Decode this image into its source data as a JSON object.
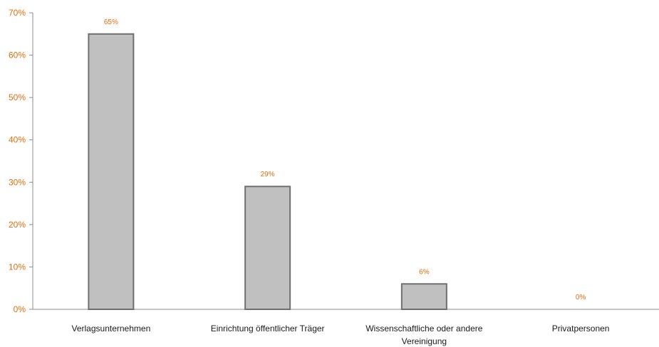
{
  "chart_data": {
    "type": "bar",
    "categories": [
      [
        "Verlagsunternehmen"
      ],
      [
        "Einrichtung öffentlicher Träger"
      ],
      [
        "Wissenschaftliche oder andere",
        "Vereinigung"
      ],
      [
        "Privatpersonen"
      ]
    ],
    "values": [
      65,
      29,
      6,
      0
    ],
    "data_labels": [
      "65%",
      "29%",
      "6%",
      "0%"
    ],
    "y_ticks": [
      "0%",
      "10%",
      "20%",
      "30%",
      "40%",
      "50%",
      "60%",
      "70%"
    ],
    "ylim": [
      0,
      70
    ],
    "grid": false,
    "colors": {
      "bar_fill": "#c0c0c0",
      "bar_stroke": "#707070",
      "accent_text": "#e46c0a",
      "axis": "#8c8c8c"
    }
  }
}
